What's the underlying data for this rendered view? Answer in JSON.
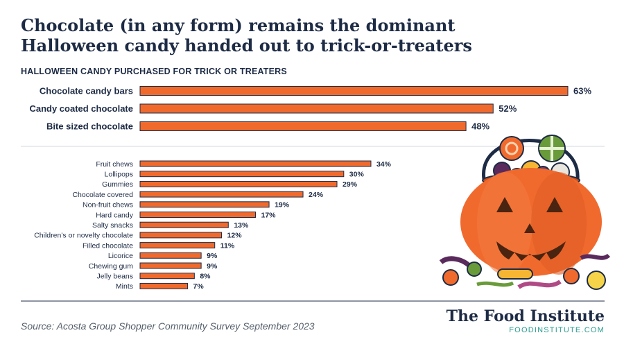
{
  "title": "Chocolate (in any form) remains the dominant Halloween candy handed out to trick-or-treaters",
  "subtitle": "HALLOWEEN CANDY PURCHASED FOR TRICK OR TREATERS",
  "source": "Source: Acosta Group Shopper Community Survey September 2023",
  "brand": {
    "name": "The Food Institute",
    "url": "FOODINSTITUTE.COM"
  },
  "colors": {
    "bar": "#f06a2e",
    "outline": "#1d2b45",
    "accent": "#2a9d8f"
  },
  "chart_data": [
    {
      "type": "bar",
      "orientation": "horizontal",
      "categories": [
        "Chocolate candy bars",
        "Candy coated chocolate",
        "Bite sized chocolate"
      ],
      "values": [
        63,
        52,
        48
      ],
      "labels": [
        "63%",
        "52%",
        "48%"
      ],
      "unit": "%",
      "xlim": [
        0,
        63
      ]
    },
    {
      "type": "bar",
      "orientation": "horizontal",
      "categories": [
        "Fruit chews",
        "Lollipops",
        "Gummies",
        "Chocolate covered",
        "Non-fruit chews",
        "Hard candy",
        "Salty snacks",
        "Children’s or novelty chocolate",
        "Filled chocolate",
        "Licorice",
        "Chewing gum",
        "Jelly beans",
        "Mints"
      ],
      "values": [
        34,
        30,
        29,
        24,
        19,
        17,
        13,
        12,
        11,
        9,
        9,
        8,
        7
      ],
      "labels": [
        "34%",
        "30%",
        "29%",
        "24%",
        "19%",
        "17%",
        "13%",
        "12%",
        "11%",
        "9%",
        "9%",
        "8%",
        "7%"
      ],
      "unit": "%",
      "xlim": [
        0,
        63
      ]
    }
  ],
  "illustration": {
    "icon": "jack-o-lantern-candy-bucket-icon"
  }
}
